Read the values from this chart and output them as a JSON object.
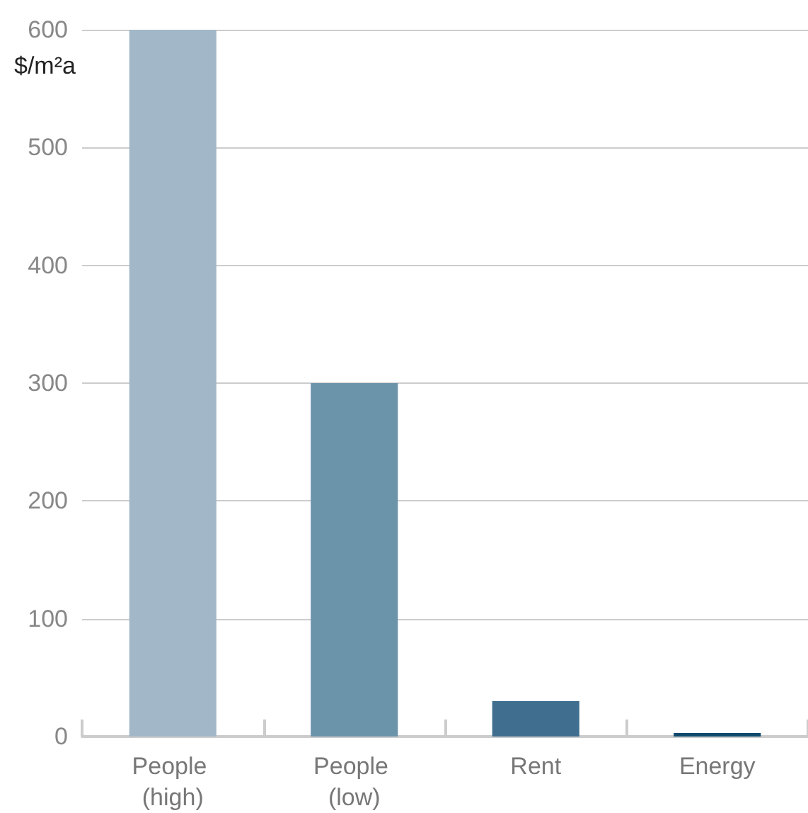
{
  "chart_data": {
    "type": "bar",
    "ylabel": "$/m²a",
    "categories": [
      "People (high)",
      "People (low)",
      "Rent",
      "Energy"
    ],
    "values": [
      600,
      300,
      30,
      3
    ],
    "colors": [
      "#a2b8c8",
      "#6b93aa",
      "#3f6e8f",
      "#0f4a6e"
    ],
    "ylim": [
      0,
      600
    ],
    "yticks": [
      0,
      100,
      200,
      300,
      400,
      500,
      600
    ],
    "grid": "y"
  }
}
